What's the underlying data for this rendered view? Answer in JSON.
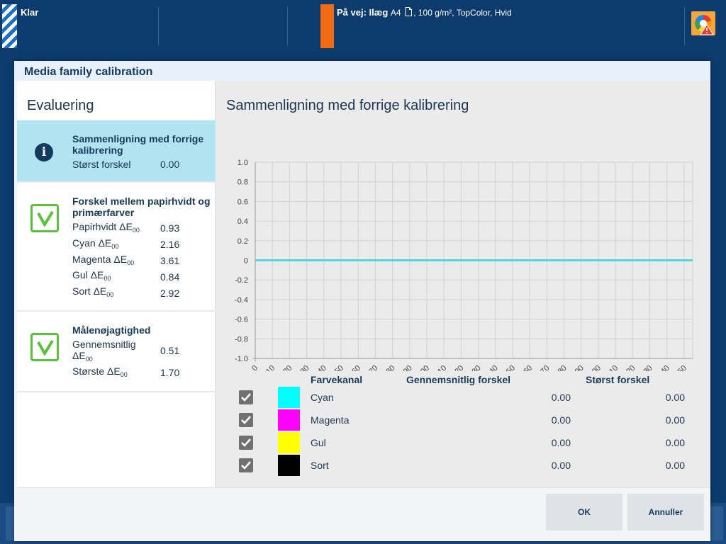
{
  "topbar": {
    "status": "Klar",
    "job": {
      "prefix": "På vej:",
      "media_label": "Ilæg",
      "size": "A4",
      "details": ", 100 g/m², TopColor, Hvid"
    },
    "accent_color": "#f26a13"
  },
  "dialog": {
    "title": "Media family calibration",
    "left": {
      "heading": "Evaluering",
      "cards": [
        {
          "title": "Sammenligning med forrige kalibrering",
          "icon": "info-icon",
          "rows": [
            {
              "label": "Størst forskel",
              "value": "0.00"
            }
          ]
        },
        {
          "title": "Forskel mellem papirhvidt og primærfarver",
          "icon": "check-icon",
          "rows": [
            {
              "label": "Papirhvidt ΔE",
              "sub": "00",
              "value": "0.93"
            },
            {
              "label": "Cyan ΔE",
              "sub": "00",
              "value": "2.16"
            },
            {
              "label": "Magenta ΔE",
              "sub": "00",
              "value": "3.61"
            },
            {
              "label": "Gul ΔE",
              "sub": "00",
              "value": "0.84"
            },
            {
              "label": "Sort ΔE",
              "sub": "00",
              "value": "2.92"
            }
          ]
        },
        {
          "title": "Målenøjagtighed",
          "icon": "check-icon",
          "rows": [
            {
              "label": "Gennemsnitlig",
              "label2": "ΔE",
              "sub": "00",
              "value": "0.51"
            },
            {
              "label": "Største ΔE",
              "sub": "00",
              "value": "1.70"
            }
          ]
        }
      ]
    },
    "right": {
      "heading": "Sammenligning med forrige kalibrering",
      "table": {
        "headers": {
          "channel": "Farvekanal",
          "avg": "Gennemsnitlig forskel",
          "max": "Størst forskel"
        },
        "rows": [
          {
            "name": "Cyan",
            "color": "#00ffff",
            "avg": "0.00",
            "max": "0.00",
            "checked": true
          },
          {
            "name": "Magenta",
            "color": "#ff00ff",
            "avg": "0.00",
            "max": "0.00",
            "checked": true
          },
          {
            "name": "Gul",
            "color": "#ffff00",
            "avg": "0.00",
            "max": "0.00",
            "checked": true
          },
          {
            "name": "Sort",
            "color": "#000000",
            "avg": "0.00",
            "max": "0.00",
            "checked": true
          }
        ]
      }
    },
    "buttons": {
      "ok": "OK",
      "cancel": "Annuller"
    }
  },
  "chart_data": {
    "type": "line",
    "title": "",
    "xlabel": "",
    "ylabel": "",
    "xlim": [
      0,
      255
    ],
    "ylim": [
      -1.0,
      1.0
    ],
    "x_ticks": [
      0,
      10,
      20,
      30,
      40,
      50,
      60,
      70,
      80,
      90,
      100,
      110,
      120,
      130,
      140,
      150,
      160,
      170,
      180,
      190,
      200,
      210,
      220,
      230,
      240,
      250
    ],
    "y_ticks": [
      "1.0",
      "0.8",
      "0.6",
      "0.4",
      "0.2",
      "0",
      "-0.2",
      "-0.4",
      "-0.6",
      "-0.8",
      "-1.0"
    ],
    "grid": true,
    "series": [
      {
        "x": [
          0,
          255
        ],
        "y": [
          0,
          0
        ],
        "color": "#4fd6e0"
      }
    ]
  }
}
